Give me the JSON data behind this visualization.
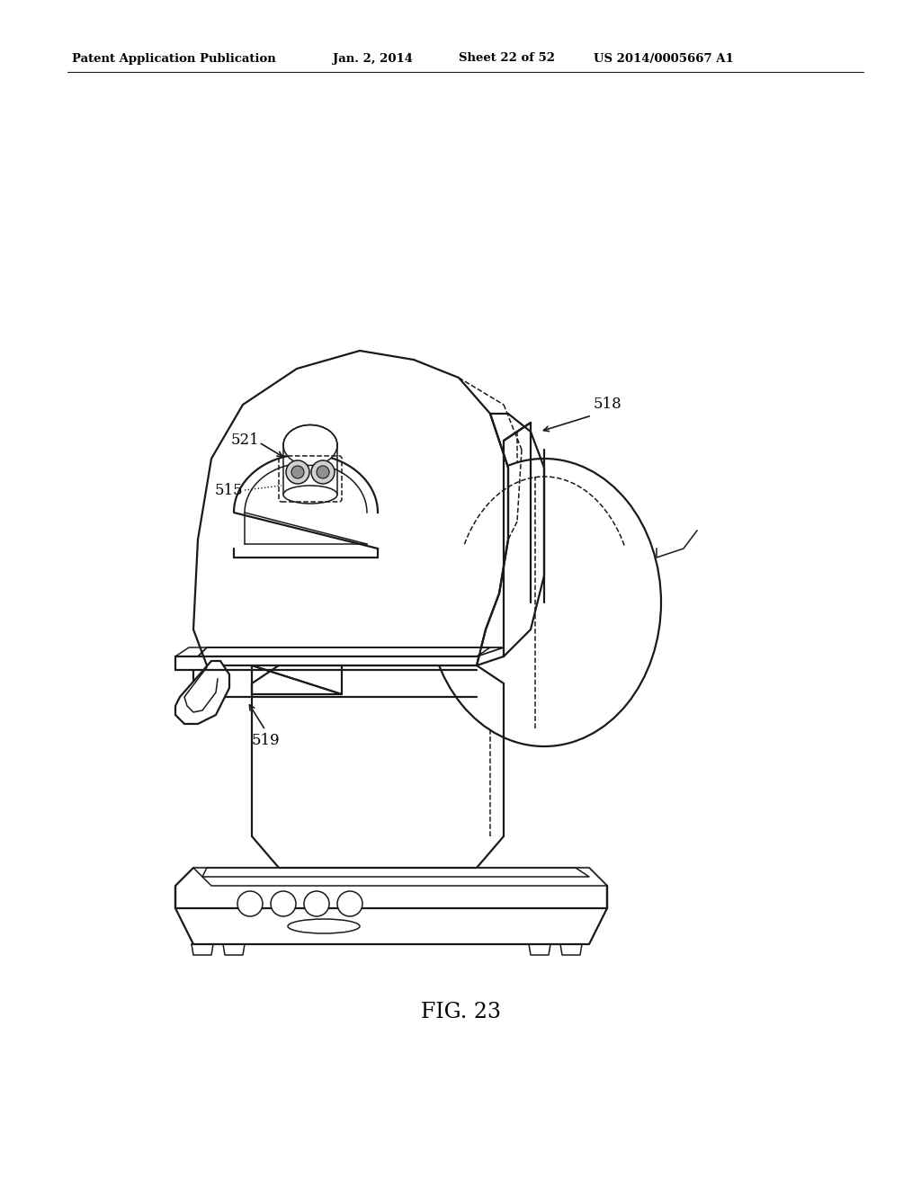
{
  "background_color": "#ffffff",
  "header_left": "Patent Application Publication",
  "header_mid1": "Jan. 2, 2014",
  "header_mid2": "Sheet 22 of 52",
  "header_right": "US 2014/0005667 A1",
  "fig_label": "FIG. 23",
  "label_518": "518",
  "label_521": "521",
  "label_515": "515",
  "label_519": "519",
  "line_color": "#1a1a1a",
  "text_color": "#000000",
  "lw_main": 1.6,
  "lw_thin": 1.1,
  "lw_med": 1.3
}
